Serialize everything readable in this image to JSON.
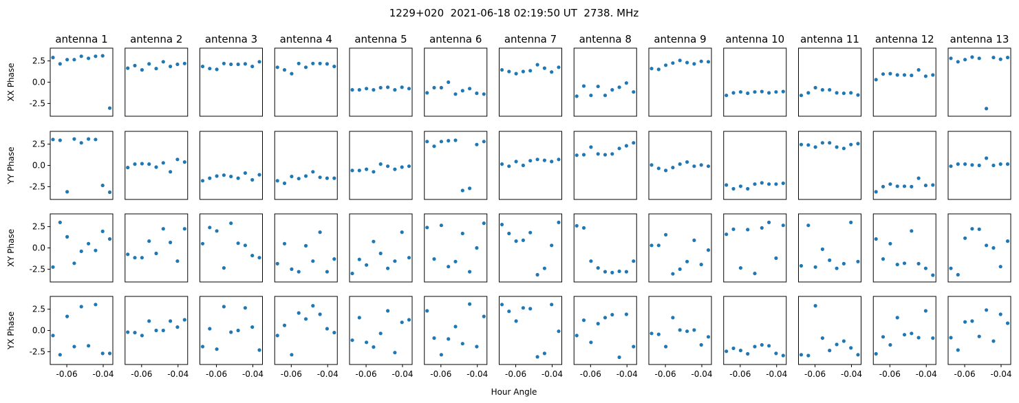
{
  "chart_data": {
    "type": "scatter",
    "title": "1229+020  2021-06-18 02:19:50 UT  2738. MHz",
    "xlabel": "Hour Angle",
    "columns": [
      "antenna 1",
      "antenna 2",
      "antenna 3",
      "antenna 4",
      "antenna 5",
      "antenna 6",
      "antenna 7",
      "antenna 8",
      "antenna 9",
      "antenna 10",
      "antenna 11",
      "antenna 12",
      "antenna 13"
    ],
    "rows": [
      {
        "key": "XX",
        "ylabel": "XX Phase"
      },
      {
        "key": "YY",
        "ylabel": "YY Phase"
      },
      {
        "key": "XY",
        "ylabel": "XY Phase"
      },
      {
        "key": "YX",
        "ylabel": "YX Phase"
      }
    ],
    "xlim": [
      -0.0691,
      -0.0347
    ],
    "ylim": [
      -4.0,
      4.0
    ],
    "xticks": [
      {
        "value": -0.06,
        "label": "-0.06"
      },
      {
        "value": -0.04,
        "label": "-0.04"
      }
    ],
    "yticks": [
      {
        "value": 2.5,
        "label": "2.5"
      },
      {
        "value": 0.0,
        "label": "0.0"
      },
      {
        "value": -2.5,
        "label": "-2.5"
      }
    ],
    "marker_color": "#1f77b4",
    "x": [
      -0.0676,
      -0.0637,
      -0.0598,
      -0.0559,
      -0.052,
      -0.0481,
      -0.0442,
      -0.0403,
      -0.0364
    ],
    "y": {
      "XX": [
        [
          2.9,
          2.15,
          2.65,
          2.65,
          3.05,
          2.8,
          3.05,
          3.1,
          -3.05
        ],
        [
          1.65,
          1.95,
          1.45,
          2.15,
          1.6,
          2.4,
          1.85,
          2.1,
          2.2
        ],
        [
          1.85,
          1.6,
          1.5,
          2.2,
          2.1,
          2.1,
          2.15,
          1.85,
          2.4
        ],
        [
          1.75,
          1.45,
          1.0,
          2.2,
          1.75,
          2.2,
          2.2,
          2.15,
          1.85
        ],
        [
          -0.9,
          -0.9,
          -0.75,
          -0.9,
          -0.65,
          -0.6,
          -0.9,
          -0.6,
          -0.75
        ],
        [
          -1.25,
          -0.65,
          -0.65,
          0.0,
          -1.4,
          -1.0,
          -0.75,
          -1.3,
          -1.4
        ],
        [
          1.45,
          1.25,
          1.0,
          1.25,
          1.35,
          2.05,
          1.65,
          1.2,
          1.75
        ],
        [
          -1.65,
          -0.45,
          -1.55,
          -0.5,
          -1.55,
          -0.9,
          -0.6,
          -0.1,
          -1.15
        ],
        [
          1.6,
          1.5,
          2.0,
          2.25,
          2.55,
          2.3,
          2.15,
          2.45,
          2.4
        ],
        [
          -1.55,
          -1.25,
          -1.15,
          -1.3,
          -1.15,
          -1.1,
          -1.25,
          -1.15,
          -1.1
        ],
        [
          -1.55,
          -1.25,
          -0.65,
          -0.9,
          -0.9,
          -1.25,
          -1.3,
          -1.25,
          -1.5
        ],
        [
          0.3,
          0.95,
          1.0,
          0.85,
          0.85,
          0.8,
          1.45,
          0.7,
          0.85
        ],
        [
          2.8,
          2.4,
          2.65,
          2.95,
          2.8,
          -3.1,
          2.9,
          2.7,
          2.9
        ]
      ],
      "YY": [
        [
          3.05,
          2.95,
          -3.1,
          3.1,
          2.65,
          3.1,
          3.05,
          -2.35,
          -3.15
        ],
        [
          -0.25,
          0.15,
          0.2,
          0.15,
          -0.2,
          0.3,
          -0.75,
          0.7,
          0.4
        ],
        [
          -1.8,
          -1.5,
          -1.25,
          -1.15,
          -1.3,
          -1.5,
          -0.9,
          -1.7,
          -1.1
        ],
        [
          -1.8,
          -2.1,
          -1.3,
          -1.55,
          -1.25,
          -0.75,
          -1.4,
          -1.5,
          -1.5
        ],
        [
          -0.6,
          -0.6,
          -0.45,
          -0.75,
          0.15,
          -0.1,
          -0.45,
          -0.2,
          -0.1
        ],
        [
          2.8,
          2.25,
          2.8,
          2.9,
          2.95,
          -2.95,
          -2.7,
          2.45,
          2.8
        ],
        [
          0.15,
          -0.1,
          0.45,
          0.0,
          0.55,
          0.7,
          0.6,
          0.45,
          0.7
        ],
        [
          1.2,
          1.25,
          2.15,
          1.35,
          1.25,
          1.35,
          2.0,
          2.3,
          2.65
        ],
        [
          0.05,
          -0.35,
          -0.6,
          -0.25,
          0.15,
          0.4,
          -0.1,
          0.05,
          -0.1
        ],
        [
          -2.3,
          -2.75,
          -2.45,
          -2.75,
          -2.2,
          -2.05,
          -2.2,
          -2.2,
          -2.1
        ],
        [
          2.45,
          2.4,
          2.15,
          2.65,
          2.65,
          2.15,
          2.0,
          2.45,
          2.55
        ],
        [
          -3.1,
          -2.5,
          -2.2,
          -2.45,
          -2.45,
          -2.5,
          -1.5,
          -2.35,
          -2.3
        ],
        [
          -0.1,
          0.15,
          0.15,
          0.05,
          0.0,
          0.85,
          0.0,
          0.15,
          0.15
        ]
      ],
      "XY": [
        [
          -2.25,
          3.0,
          1.3,
          -1.8,
          -0.4,
          0.5,
          -0.3,
          1.95,
          1.05
        ],
        [
          -0.75,
          -1.15,
          -1.15,
          0.8,
          -0.65,
          2.25,
          0.65,
          -1.55,
          2.25
        ],
        [
          0.5,
          2.4,
          2.0,
          -2.35,
          2.9,
          0.55,
          0.3,
          -0.9,
          -1.15
        ],
        [
          -1.85,
          0.5,
          -2.5,
          -2.8,
          0.25,
          -1.55,
          1.85,
          -2.8,
          -1.3
        ],
        [
          -3.0,
          -1.35,
          -2.0,
          0.75,
          -0.65,
          -2.4,
          -1.55,
          1.85,
          -1.15
        ],
        [
          2.4,
          -1.3,
          2.65,
          -2.2,
          -1.6,
          1.7,
          -2.8,
          0.0,
          2.9
        ],
        [
          2.75,
          1.7,
          0.8,
          0.9,
          1.8,
          -3.15,
          -2.4,
          0.3,
          3.0
        ],
        [
          2.6,
          2.35,
          -1.55,
          -2.35,
          -2.8,
          -2.9,
          -2.75,
          -2.8,
          -1.55
        ],
        [
          0.3,
          0.3,
          1.55,
          -3.05,
          -2.5,
          -1.6,
          0.9,
          -1.95,
          -0.25
        ],
        [
          1.6,
          2.2,
          -2.35,
          2.15,
          -3.0,
          2.35,
          3.0,
          -1.2,
          2.65
        ],
        [
          -2.1,
          2.65,
          -2.25,
          -0.15,
          -1.45,
          -2.4,
          -1.85,
          3.0,
          -1.6
        ],
        [
          1.05,
          -1.3,
          0.5,
          -1.95,
          -1.8,
          2.0,
          -1.85,
          -2.4,
          -3.2
        ],
        [
          -2.4,
          -3.15,
          1.15,
          2.25,
          2.2,
          0.3,
          0.0,
          -2.2,
          0.8
        ]
      ],
      "YX": [
        [
          -0.6,
          -2.85,
          1.65,
          -1.9,
          2.8,
          -1.8,
          3.05,
          -2.7,
          -2.7
        ],
        [
          -0.2,
          -0.25,
          -0.6,
          1.1,
          0.0,
          0.0,
          1.1,
          0.4,
          1.25
        ],
        [
          -1.9,
          0.2,
          -2.2,
          2.8,
          -0.2,
          0.0,
          2.65,
          0.4,
          -2.3
        ],
        [
          -0.6,
          0.6,
          -2.85,
          2.05,
          1.35,
          2.9,
          1.9,
          0.2,
          -0.25
        ],
        [
          -1.15,
          1.5,
          -1.4,
          -1.95,
          -0.35,
          2.3,
          -2.6,
          0.95,
          1.25
        ],
        [
          2.3,
          -0.9,
          -2.85,
          -1.0,
          0.45,
          -1.55,
          3.1,
          -1.9,
          1.65
        ],
        [
          3.05,
          2.25,
          1.1,
          2.65,
          2.55,
          -3.1,
          -2.7,
          3.05,
          -0.1
        ],
        [
          -0.6,
          1.2,
          -1.4,
          0.8,
          1.5,
          1.85,
          -3.15,
          1.9,
          -1.9
        ],
        [
          -0.35,
          -0.45,
          -1.9,
          1.5,
          0.05,
          -0.1,
          0.05,
          -1.7,
          -0.75
        ],
        [
          -2.45,
          -2.1,
          -2.35,
          -2.75,
          -1.9,
          -1.7,
          -1.8,
          -2.7,
          -2.95
        ],
        [
          -2.85,
          -2.95,
          2.9,
          -0.9,
          -2.35,
          -1.65,
          -1.25,
          -2.05,
          -2.85
        ],
        [
          -2.75,
          -0.75,
          -1.7,
          1.5,
          -0.5,
          -0.35,
          -0.85,
          2.3,
          -0.9
        ],
        [
          -0.85,
          -2.3,
          1.0,
          1.1,
          -0.7,
          2.4,
          -1.25,
          1.9,
          0.85
        ]
      ]
    }
  }
}
